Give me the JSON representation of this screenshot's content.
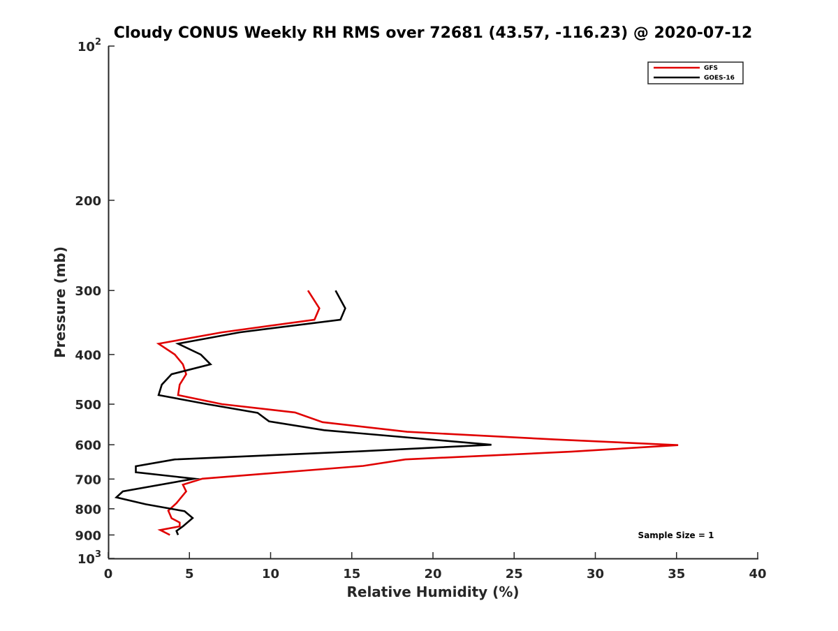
{
  "chart_data": {
    "type": "line",
    "title": "Cloudy CONUS Weekly RH RMS over 72681 (43.57, -116.23) @ 2020-07-12",
    "xlabel": "Relative Humidity (%)",
    "ylabel": "Pressure (mb)",
    "xlim": [
      0,
      40
    ],
    "ylim": [
      100,
      1000
    ],
    "y_scale": "log",
    "y_direction": "reversed",
    "grid": false,
    "legend_position": "top-right",
    "x_ticks": [
      0,
      5,
      10,
      15,
      20,
      25,
      30,
      35,
      40
    ],
    "x_tick_labels": [
      "0",
      "5",
      "10",
      "15",
      "20",
      "25",
      "30",
      "35",
      "40"
    ],
    "y_ticks": [
      200,
      300,
      400,
      500,
      600,
      700,
      800,
      900
    ],
    "y_tick_labels": [
      "200",
      "300",
      "400",
      "500",
      "600",
      "700",
      "800",
      "900"
    ],
    "y_decade_ticks": [
      {
        "value": 100,
        "base": "10",
        "exp": "2"
      },
      {
        "value": 1000,
        "base": "10",
        "exp": "3"
      }
    ],
    "annotation": "Sample Size = 1",
    "series": [
      {
        "name": "GFS",
        "color": "#e00000",
        "points": [
          {
            "x": 12.3,
            "y": 300
          },
          {
            "x": 13.0,
            "y": 325
          },
          {
            "x": 12.7,
            "y": 342
          },
          {
            "x": 7.0,
            "y": 362
          },
          {
            "x": 3.1,
            "y": 381
          },
          {
            "x": 4.1,
            "y": 400
          },
          {
            "x": 4.6,
            "y": 418
          },
          {
            "x": 4.8,
            "y": 437
          },
          {
            "x": 4.4,
            "y": 458
          },
          {
            "x": 4.3,
            "y": 480
          },
          {
            "x": 7.0,
            "y": 500
          },
          {
            "x": 11.5,
            "y": 519
          },
          {
            "x": 13.2,
            "y": 542
          },
          {
            "x": 18.4,
            "y": 566
          },
          {
            "x": 27.5,
            "y": 586
          },
          {
            "x": 35.1,
            "y": 601
          },
          {
            "x": 28.5,
            "y": 619
          },
          {
            "x": 18.3,
            "y": 641
          },
          {
            "x": 15.7,
            "y": 660
          },
          {
            "x": 5.8,
            "y": 699
          },
          {
            "x": 4.6,
            "y": 718
          },
          {
            "x": 4.8,
            "y": 740
          },
          {
            "x": 4.2,
            "y": 780
          },
          {
            "x": 3.7,
            "y": 807
          },
          {
            "x": 3.9,
            "y": 835
          },
          {
            "x": 4.4,
            "y": 851
          },
          {
            "x": 4.4,
            "y": 866
          },
          {
            "x": 3.2,
            "y": 880
          },
          {
            "x": 3.8,
            "y": 900
          }
        ]
      },
      {
        "name": "GOES-16",
        "color": "#000000",
        "points": [
          {
            "x": 14.0,
            "y": 300
          },
          {
            "x": 14.6,
            "y": 325
          },
          {
            "x": 14.3,
            "y": 342
          },
          {
            "x": 8.1,
            "y": 362
          },
          {
            "x": 4.3,
            "y": 381
          },
          {
            "x": 5.7,
            "y": 400
          },
          {
            "x": 6.3,
            "y": 418
          },
          {
            "x": 3.9,
            "y": 437
          },
          {
            "x": 3.3,
            "y": 458
          },
          {
            "x": 3.1,
            "y": 480
          },
          {
            "x": 6.1,
            "y": 500
          },
          {
            "x": 9.2,
            "y": 520
          },
          {
            "x": 9.9,
            "y": 540
          },
          {
            "x": 13.3,
            "y": 562
          },
          {
            "x": 23.6,
            "y": 600
          },
          {
            "x": 15.0,
            "y": 619
          },
          {
            "x": 4.1,
            "y": 641
          },
          {
            "x": 1.7,
            "y": 661
          },
          {
            "x": 1.7,
            "y": 679
          },
          {
            "x": 5.3,
            "y": 699
          },
          {
            "x": 0.9,
            "y": 740
          },
          {
            "x": 0.5,
            "y": 760
          },
          {
            "x": 2.3,
            "y": 784
          },
          {
            "x": 4.7,
            "y": 809
          },
          {
            "x": 5.2,
            "y": 834
          },
          {
            "x": 4.6,
            "y": 866
          },
          {
            "x": 4.2,
            "y": 884
          },
          {
            "x": 4.3,
            "y": 900
          }
        ]
      }
    ]
  }
}
